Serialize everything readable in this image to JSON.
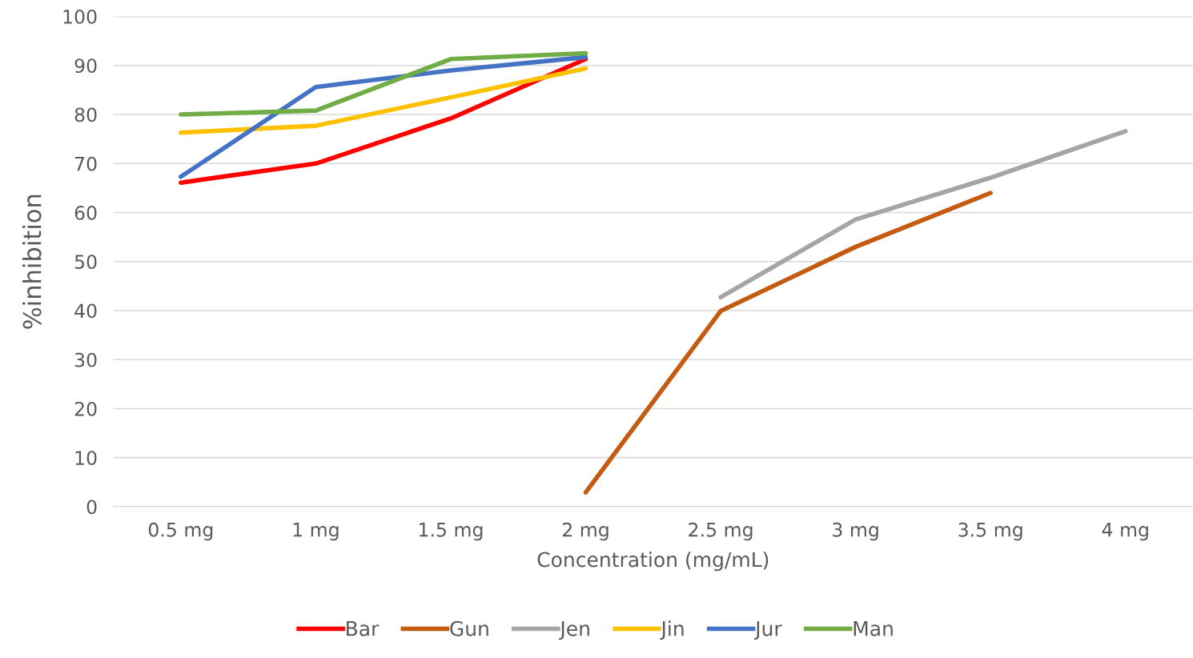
{
  "chart_data": {
    "type": "line",
    "xlabel": "Concentration (mg/mL)",
    "ylabel": "%inhibition",
    "categories": [
      "0.5 mg",
      "1 mg",
      "1.5 mg",
      "2 mg",
      "2.5 mg",
      "3 mg",
      "3.5 mg",
      "4 mg"
    ],
    "series": [
      {
        "name": "Bar",
        "color": "#ff0000",
        "values": [
          66.1,
          70.0,
          79.2,
          91.3,
          null,
          null,
          null,
          null
        ]
      },
      {
        "name": "Gun",
        "color": "#c55a11",
        "values": [
          null,
          null,
          null,
          2.9,
          39.9,
          53.0,
          64.0,
          null
        ]
      },
      {
        "name": "Jen",
        "color": "#a5a5a5",
        "values": [
          null,
          null,
          null,
          null,
          42.7,
          58.6,
          67.1,
          76.6
        ]
      },
      {
        "name": "Jin",
        "color": "#ffc000",
        "values": [
          76.3,
          77.7,
          83.5,
          89.4,
          null,
          null,
          null,
          null
        ]
      },
      {
        "name": "Jur",
        "color": "#4472c4",
        "values": [
          67.3,
          85.6,
          89.0,
          91.7,
          null,
          null,
          null,
          null
        ]
      },
      {
        "name": "Man",
        "color": "#70ad47",
        "values": [
          80.0,
          80.8,
          91.3,
          92.5,
          null,
          null,
          null,
          null
        ]
      }
    ],
    "ylim": [
      0,
      100
    ],
    "yticks": [
      0,
      10,
      20,
      30,
      40,
      50,
      60,
      70,
      80,
      90,
      100
    ],
    "grid": "y",
    "legend": "bottom",
    "marker": "none",
    "line_style": "solid"
  }
}
